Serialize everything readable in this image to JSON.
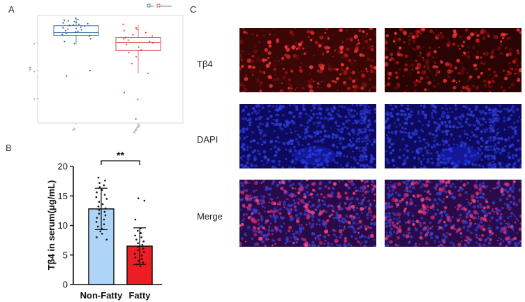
{
  "panels": {
    "a": {
      "letter": "A",
      "legend": [
        {
          "label": "nd",
          "color": "#2a5c9e"
        },
        {
          "label": "steatosis",
          "color": "#e0352f"
        }
      ],
      "y_ticks": [
        "0",
        "-2",
        "-4"
      ],
      "x_ticks": [
        "nd",
        "steatosis"
      ],
      "ylabel": "Tβ4",
      "chart_data": {
        "type": "box",
        "title": "",
        "xlabel": "",
        "ylabel": "Tβ4",
        "categories": [
          "nd",
          "steatosis"
        ],
        "ylim": [
          -5.8,
          2.0
        ],
        "series": [
          {
            "name": "nd",
            "color": "#2a5c9e",
            "box": {
              "q1": 0.55,
              "median": 0.75,
              "q3": 1.25,
              "whisker_low": -0.1,
              "whisker_high": 1.75
            },
            "points": [
              1.8,
              1.7,
              1.65,
              1.6,
              1.55,
              1.5,
              1.45,
              1.4,
              1.35,
              1.3,
              1.28,
              1.22,
              1.15,
              1.1,
              1.05,
              1.0,
              0.95,
              0.9,
              0.85,
              0.8,
              0.7,
              0.6,
              0.5,
              0.3,
              0.1,
              -0.05,
              -2.0,
              -2.4
            ]
          },
          {
            "name": "steatosis",
            "color": "#e0352f",
            "box": {
              "q1": -0.55,
              "median": 0.05,
              "q3": 0.4,
              "whisker_low": -2.2,
              "whisker_high": 1.3
            },
            "points": [
              1.35,
              1.1,
              1.0,
              0.9,
              0.75,
              0.6,
              0.5,
              0.4,
              0.3,
              0.2,
              0.1,
              0.0,
              -0.1,
              -0.3,
              -0.5,
              -0.7,
              -1.0,
              -1.5,
              -2.2,
              -3.6,
              -4.1,
              -5.5
            ]
          }
        ]
      }
    },
    "b": {
      "letter": "B",
      "significance": "**",
      "chart_data": {
        "type": "bar",
        "title": "",
        "xlabel": "",
        "ylabel": "Tβ4 in serum(μg/mL)",
        "categories": [
          "Non-Fatty",
          "Fatty"
        ],
        "values": [
          12.8,
          6.5
        ],
        "errors": [
          3.5,
          3.1
        ],
        "colors": [
          "#aed4f7",
          "#ee1d23"
        ],
        "ylim": [
          0,
          20
        ],
        "yticks": [
          "0",
          "5",
          "10",
          "15",
          "20"
        ],
        "points": [
          [
            18.1,
            17.6,
            17.2,
            16.8,
            16.5,
            16.0,
            15.6,
            15.2,
            14.8,
            14.5,
            14.0,
            13.6,
            13.2,
            12.9,
            12.6,
            12.3,
            12.0,
            11.7,
            11.3,
            11.0,
            10.6,
            10.2,
            9.8,
            9.4,
            9.0,
            8.6,
            8.0,
            7.6
          ],
          [
            14.6,
            14.2,
            11.0,
            9.5,
            9.1,
            8.7,
            8.3,
            8.0,
            7.6,
            7.3,
            7.0,
            6.7,
            6.4,
            6.1,
            5.8,
            5.5,
            5.2,
            4.9,
            4.6,
            4.3,
            4.0,
            3.7,
            3.4,
            3.1
          ]
        ]
      }
    },
    "c": {
      "letter": "C",
      "rows": [
        {
          "label": "Tβ4",
          "kind": "red"
        },
        {
          "label": "DAPI",
          "kind": "blue"
        },
        {
          "label": "Merge",
          "kind": "merge"
        }
      ]
    }
  }
}
